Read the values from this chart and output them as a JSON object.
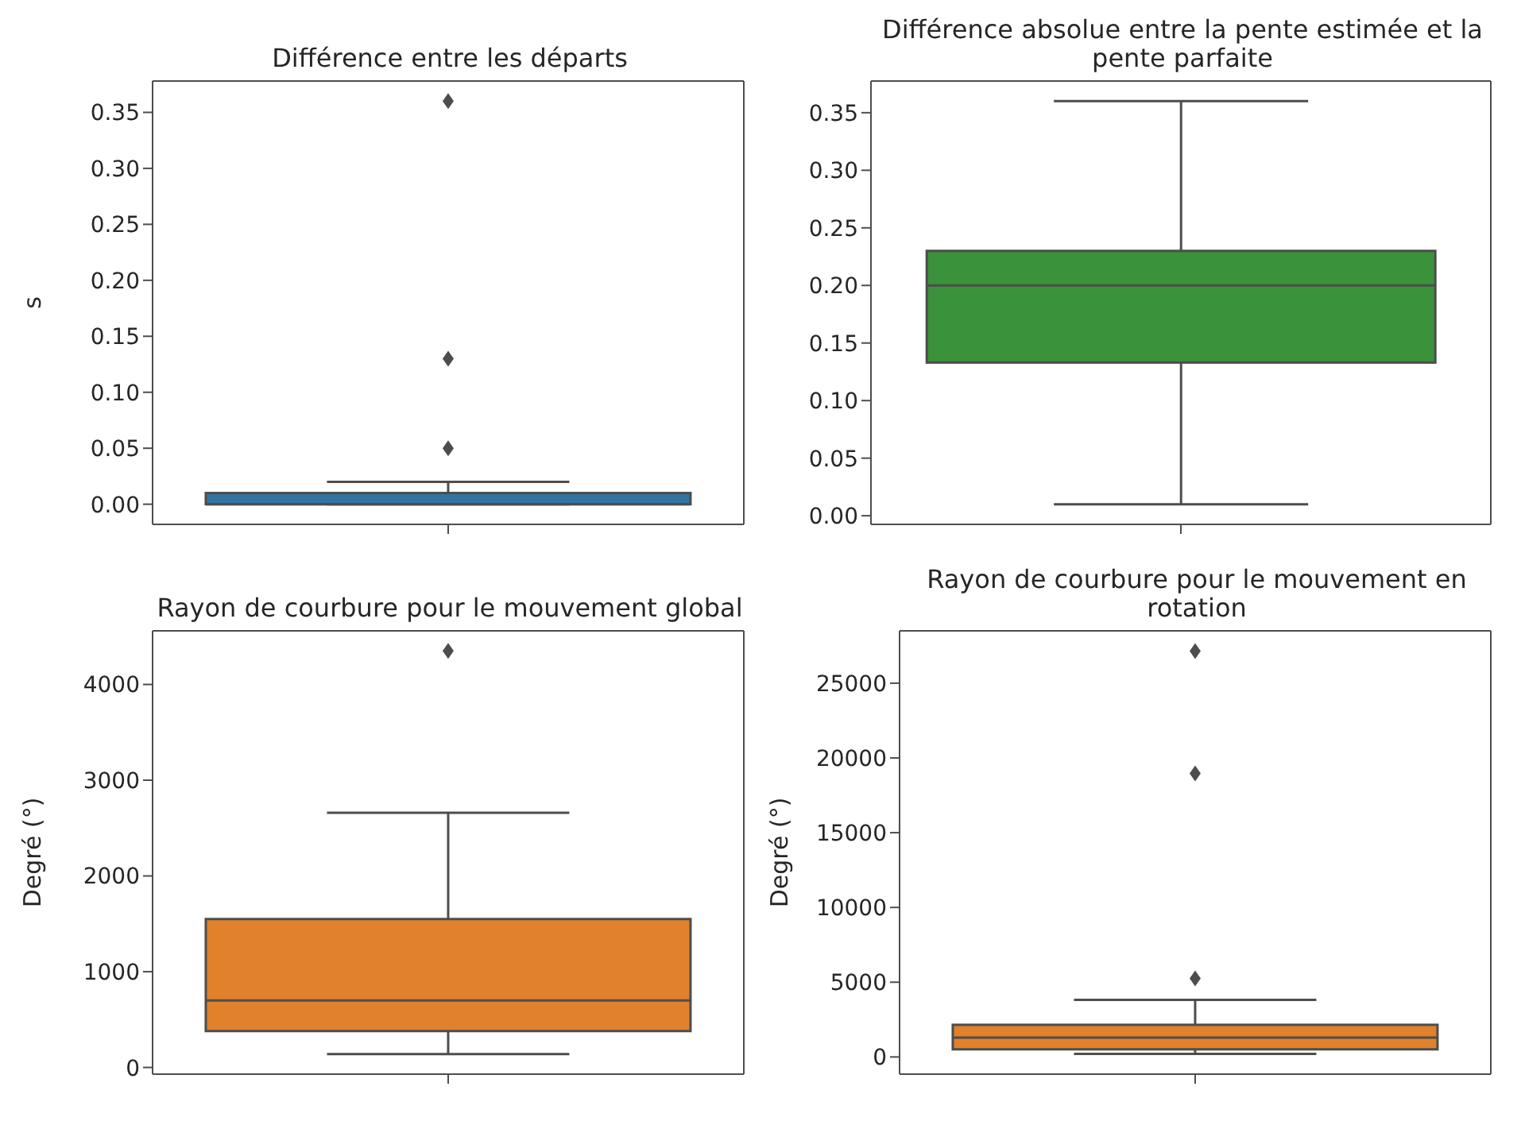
{
  "chart_data": [
    {
      "type": "box",
      "title": "Différence entre les départs",
      "ylabel": "s",
      "categories": [
        null
      ],
      "color": "#3274a1",
      "boxes": [
        {
          "low": 0,
          "q1": 0,
          "median": 0,
          "q3": 0.01,
          "high": 0.02,
          "outliers": [
            0.05,
            0.13,
            0.36
          ]
        }
      ],
      "ylim": [
        -0.018,
        0.378
      ],
      "yticks": [
        {
          "value": 0,
          "label": "0.00"
        },
        0.05,
        {
          "value": 0.1,
          "label": "0.10"
        },
        0.15,
        {
          "value": 0.2,
          "label": "0.20"
        },
        0.25,
        {
          "value": 0.3,
          "label": "0.30"
        },
        0.35
      ]
    },
    {
      "type": "box",
      "title": "Différence absolue entre la pente estimée et la pente parfaite",
      "categories": [
        null
      ],
      "color": "#3a923a",
      "boxes": [
        {
          "low": 0.01,
          "q1": 0.133,
          "median": 0.2,
          "q3": 0.23,
          "high": 0.36
        }
      ],
      "ylim": [
        -0.0075,
        0.3775
      ],
      "yticks": [
        {
          "value": 0,
          "label": "0.00"
        },
        0.05,
        {
          "value": 0.1,
          "label": "0.10"
        },
        0.15,
        {
          "value": 0.2,
          "label": "0.20"
        },
        0.25,
        {
          "value": 0.3,
          "label": "0.30"
        },
        0.35
      ]
    },
    {
      "type": "box",
      "title": "Rayon de courbure pour le mouvement global",
      "ylabel": "Degré (°)",
      "categories": [
        null
      ],
      "color": "#e1812c",
      "boxes": [
        {
          "low": 140,
          "q1": 380,
          "median": 700,
          "q3": 1550,
          "high": 2660,
          "outliers": [
            4350
          ]
        }
      ],
      "ylim": [
        -70,
        4560
      ],
      "yticks": [
        0,
        1000,
        2000,
        3000,
        4000
      ]
    },
    {
      "type": "box",
      "title": "Rayon de courbure pour le mouvement en rotation",
      "ylabel": "Degré (°)",
      "categories": [
        null
      ],
      "color": "#e1812c",
      "boxes": [
        {
          "low": 200,
          "q1": 510,
          "median": 1300,
          "q3": 2150,
          "high": 3820,
          "outliers": [
            5250,
            18960,
            27150
          ]
        }
      ],
      "ylim": [
        -1150,
        28500
      ],
      "yticks": [
        0,
        5000,
        10000,
        15000,
        20000,
        25000
      ]
    }
  ]
}
